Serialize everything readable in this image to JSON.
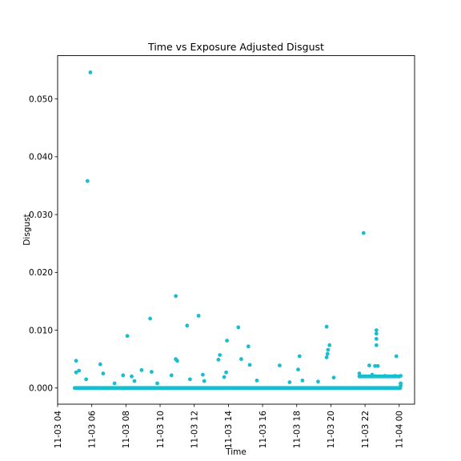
{
  "chart_data": {
    "type": "scatter",
    "title": "Time vs Exposure Adjusted Disgust",
    "xlabel": "Time",
    "ylabel": "Disgust",
    "xlim": [
      "2020-11-03T04:00",
      "2020-11-04T00:54"
    ],
    "ylim": [
      -0.0028,
      0.0575
    ],
    "x_ticks": [
      "11-03 04",
      "11-03 06",
      "11-03 08",
      "11-03 10",
      "11-03 12",
      "11-03 14",
      "11-03 16",
      "11-03 18",
      "11-03 20",
      "11-03 22",
      "11-04 00"
    ],
    "y_ticks": [
      "0.000",
      "0.010",
      "0.020",
      "0.030",
      "0.040",
      "0.050"
    ],
    "y_tick_values": [
      0,
      0.01,
      0.02,
      0.03,
      0.04,
      0.05
    ],
    "grid": false,
    "color": "#17becf",
    "points": [
      [
        "2020-11-03T05:05",
        0.0047
      ],
      [
        "2020-11-03T05:05",
        0.0027
      ],
      [
        "2020-11-03T05:15",
        0.003
      ],
      [
        "2020-11-03T05:45",
        0.0358
      ],
      [
        "2020-11-03T05:55",
        0.0546
      ],
      [
        "2020-11-03T05:40",
        0.0015
      ],
      [
        "2020-11-03T06:30",
        0.0041
      ],
      [
        "2020-11-03T06:40",
        0.0025
      ],
      [
        "2020-11-03T07:20",
        0.0008
      ],
      [
        "2020-11-03T07:50",
        0.0022
      ],
      [
        "2020-11-03T08:05",
        0.009
      ],
      [
        "2020-11-03T08:20",
        0.002
      ],
      [
        "2020-11-03T08:30",
        0.0012
      ],
      [
        "2020-11-03T08:55",
        0.0031
      ],
      [
        "2020-11-03T09:25",
        0.012
      ],
      [
        "2020-11-03T09:30",
        0.0028
      ],
      [
        "2020-11-03T09:50",
        0.0008
      ],
      [
        "2020-11-03T10:40",
        0.0022
      ],
      [
        "2020-11-03T10:55",
        0.0159
      ],
      [
        "2020-11-03T10:55",
        0.005
      ],
      [
        "2020-11-03T11:00",
        0.0047
      ],
      [
        "2020-11-03T11:35",
        0.0108
      ],
      [
        "2020-11-03T11:45",
        0.0015
      ],
      [
        "2020-11-03T12:15",
        0.0125
      ],
      [
        "2020-11-03T12:30",
        0.0023
      ],
      [
        "2020-11-03T12:35",
        0.0012
      ],
      [
        "2020-11-03T13:25",
        0.0049
      ],
      [
        "2020-11-03T13:30",
        0.0057
      ],
      [
        "2020-11-03T13:45",
        0.0019
      ],
      [
        "2020-11-03T13:55",
        0.0082
      ],
      [
        "2020-11-03T13:52",
        0.0027
      ],
      [
        "2020-11-03T14:35",
        0.0105
      ],
      [
        "2020-11-03T14:45",
        0.005
      ],
      [
        "2020-11-03T15:10",
        0.0072
      ],
      [
        "2020-11-03T15:15",
        0.004
      ],
      [
        "2020-11-03T15:40",
        0.0013
      ],
      [
        "2020-11-03T17:00",
        0.0039
      ],
      [
        "2020-11-03T17:35",
        0.001
      ],
      [
        "2020-11-03T18:10",
        0.0055
      ],
      [
        "2020-11-03T18:05",
        0.0032
      ],
      [
        "2020-11-03T18:20",
        0.0013
      ],
      [
        "2020-11-03T19:15",
        0.0011
      ],
      [
        "2020-11-03T19:45",
        0.0106
      ],
      [
        "2020-11-03T19:48",
        0.0059
      ],
      [
        "2020-11-03T19:50",
        0.0066
      ],
      [
        "2020-11-03T19:55",
        0.0074
      ],
      [
        "2020-11-03T19:45",
        0.0053
      ],
      [
        "2020-11-03T20:10",
        0.0018
      ],
      [
        "2020-11-03T21:40",
        0.0025
      ],
      [
        "2020-11-03T21:55",
        0.0268
      ],
      [
        "2020-11-03T22:15",
        0.0039
      ],
      [
        "2020-11-03T22:25",
        0.0023
      ],
      [
        "2020-11-03T22:35",
        0.0038
      ],
      [
        "2020-11-03T22:40",
        0.01
      ],
      [
        "2020-11-03T22:40",
        0.0094
      ],
      [
        "2020-11-03T22:40",
        0.0085
      ],
      [
        "2020-11-03T22:40",
        0.0074
      ],
      [
        "2020-11-03T22:45",
        0.0038
      ],
      [
        "2020-11-03T23:10",
        0.0021
      ],
      [
        "2020-11-03T23:45",
        0.0021
      ],
      [
        "2020-11-03T23:50",
        0.0055
      ],
      [
        "2020-11-04T00:05",
        0.0021
      ],
      [
        "2020-11-04T00:05",
        0.0008
      ],
      [
        "2020-11-04T00:05",
        0.0004
      ]
    ],
    "dense_bands": [
      {
        "x_from": "2020-11-03T05:00",
        "x_to": "2020-11-04T00:05",
        "y": 0.0
      },
      {
        "x_from": "2020-11-03T21:40",
        "x_to": "2020-11-04T00:05",
        "y": 0.002
      }
    ]
  }
}
